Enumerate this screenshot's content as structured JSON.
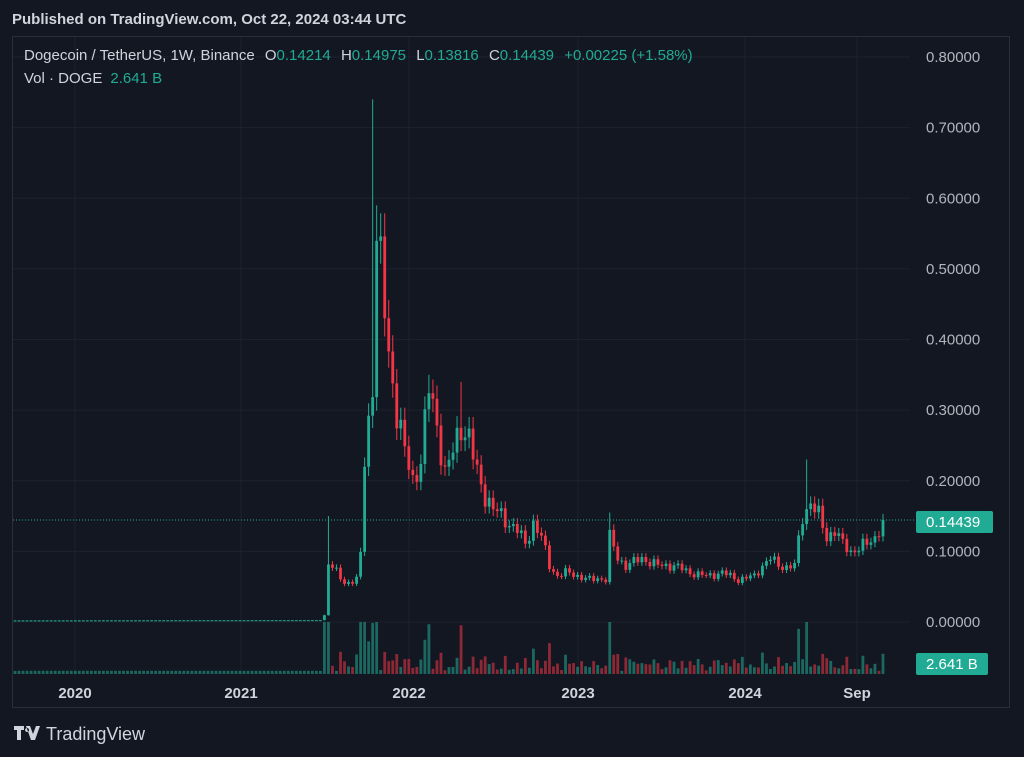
{
  "published": "Published on TradingView.com, Oct 22, 2024 03:44 UTC",
  "legend": {
    "symbol": "Dogecoin / TetherUS, 1W, Binance",
    "open_label": "O",
    "open": "0.14214",
    "high_label": "H",
    "high": "0.14975",
    "low_label": "L",
    "low": "0.13816",
    "close_label": "C",
    "close": "0.14439",
    "change": "+0.00225 (+1.58%)",
    "vol_label": "Vol · DOGE",
    "vol_value": "2.641 B"
  },
  "badges": {
    "price": "0.14439",
    "volume": "2.641 B"
  },
  "footer": {
    "brand": "TradingView"
  },
  "colors": {
    "background": "#131722",
    "up": "#22ab94",
    "down": "#f23645",
    "grid": "#1e222d"
  },
  "chart_data": {
    "type": "candlestick",
    "y_ticks": [
      "0.80000",
      "0.70000",
      "0.60000",
      "0.50000",
      "0.40000",
      "0.30000",
      "0.20000",
      "0.10000",
      "0.00000"
    ],
    "ylim": [
      0,
      0.8
    ],
    "x_labels": [
      "2020",
      "2021",
      "2022",
      "2023",
      "2024",
      "Sep"
    ],
    "last_price": 0.14439,
    "price_anchors": [
      [
        0,
        0.0022
      ],
      [
        76,
        0.0026
      ],
      [
        77,
        0.0095
      ],
      [
        78,
        0.085
      ],
      [
        82,
        0.055
      ],
      [
        85,
        0.06
      ],
      [
        86,
        0.095
      ],
      [
        87,
        0.23
      ],
      [
        89,
        0.34
      ],
      [
        90,
        0.55
      ],
      [
        91,
        0.5
      ],
      [
        93,
        0.38
      ],
      [
        95,
        0.3
      ],
      [
        97,
        0.24
      ],
      [
        99,
        0.2
      ],
      [
        101,
        0.23
      ],
      [
        103,
        0.33
      ],
      [
        105,
        0.28
      ],
      [
        107,
        0.21
      ],
      [
        109,
        0.24
      ],
      [
        111,
        0.28
      ],
      [
        113,
        0.26
      ],
      [
        115,
        0.21
      ],
      [
        117,
        0.18
      ],
      [
        119,
        0.16
      ],
      [
        121,
        0.15
      ],
      [
        123,
        0.14
      ],
      [
        125,
        0.13
      ],
      [
        127,
        0.11
      ],
      [
        129,
        0.14
      ],
      [
        131,
        0.12
      ],
      [
        133,
        0.08
      ],
      [
        135,
        0.065
      ],
      [
        137,
        0.07
      ],
      [
        139,
        0.068
      ],
      [
        141,
        0.063
      ],
      [
        143,
        0.06
      ],
      [
        145,
        0.062
      ],
      [
        147,
        0.06
      ],
      [
        148,
        0.12
      ],
      [
        150,
        0.09
      ],
      [
        152,
        0.08
      ],
      [
        156,
        0.09
      ],
      [
        160,
        0.08
      ],
      [
        164,
        0.08
      ],
      [
        168,
        0.07
      ],
      [
        172,
        0.065
      ],
      [
        176,
        0.07
      ],
      [
        180,
        0.06
      ],
      [
        184,
        0.065
      ],
      [
        186,
        0.08
      ],
      [
        188,
        0.09
      ],
      [
        190,
        0.08
      ],
      [
        192,
        0.078
      ],
      [
        194,
        0.08
      ],
      [
        196,
        0.15
      ],
      [
        198,
        0.17
      ],
      [
        200,
        0.15
      ],
      [
        202,
        0.12
      ],
      [
        204,
        0.13
      ],
      [
        206,
        0.11
      ],
      [
        208,
        0.1
      ],
      [
        210,
        0.105
      ],
      [
        212,
        0.11
      ],
      [
        214,
        0.12
      ],
      [
        216,
        0.14439
      ]
    ],
    "spikes": [
      {
        "i": 78,
        "high": 0.15
      },
      {
        "i": 89,
        "high": 0.74
      },
      {
        "i": 90,
        "high": 0.59
      },
      {
        "i": 103,
        "high": 0.35
      },
      {
        "i": 111,
        "high": 0.34
      },
      {
        "i": 148,
        "high": 0.155
      },
      {
        "i": 197,
        "high": 0.23
      }
    ]
  }
}
